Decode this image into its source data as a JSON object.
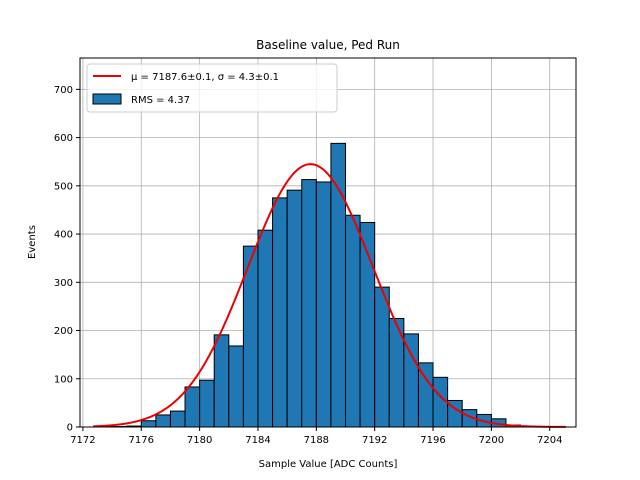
{
  "chart_data": {
    "type": "bar",
    "title": "Baseline value, Ped Run",
    "xlabel": "Sample Value [ADC Counts]",
    "ylabel": "Events",
    "xlim": [
      7171.8,
      7205.8
    ],
    "ylim": [
      0,
      765
    ],
    "xticks": [
      7172,
      7176,
      7180,
      7184,
      7188,
      7192,
      7196,
      7200,
      7204
    ],
    "yticks": [
      0,
      100,
      200,
      300,
      400,
      500,
      600,
      700
    ],
    "grid": true,
    "legend_position": "top-left",
    "bin_width": 1,
    "bin_left_edges": [
      7173,
      7174,
      7175,
      7176,
      7177,
      7178,
      7179,
      7180,
      7181,
      7182,
      7183,
      7184,
      7185,
      7186,
      7187,
      7188,
      7189,
      7190,
      7191,
      7192,
      7193,
      7194,
      7195,
      7196,
      7197,
      7198,
      7199,
      7200,
      7201
    ],
    "counts": [
      1,
      1,
      2,
      13,
      25,
      33,
      83,
      97,
      191,
      168,
      375,
      408,
      475,
      491,
      513,
      508,
      588,
      439,
      424,
      290,
      225,
      193,
      133,
      103,
      55,
      36,
      26,
      17,
      4
    ],
    "fit_curve": {
      "mu": 7187.6,
      "sigma": 4.3,
      "amplitude": 545,
      "x_range": [
        7172.7,
        7205.1
      ]
    },
    "series": [
      {
        "name": "$\\mu = 7187.6\\pm0.1$, $\\sigma = 4.3\\pm0.1$",
        "display": "μ = 7187.6±0.1, σ = 4.3±0.1",
        "type": "line"
      },
      {
        "name": "RMS = 4.37",
        "display": "RMS = 4.37",
        "type": "bar"
      }
    ],
    "colors": {
      "bar_fill": "#1f77b4",
      "bar_edge": "#000000",
      "fit_line": "#ee0000",
      "grid": "#b0b0b0"
    }
  }
}
